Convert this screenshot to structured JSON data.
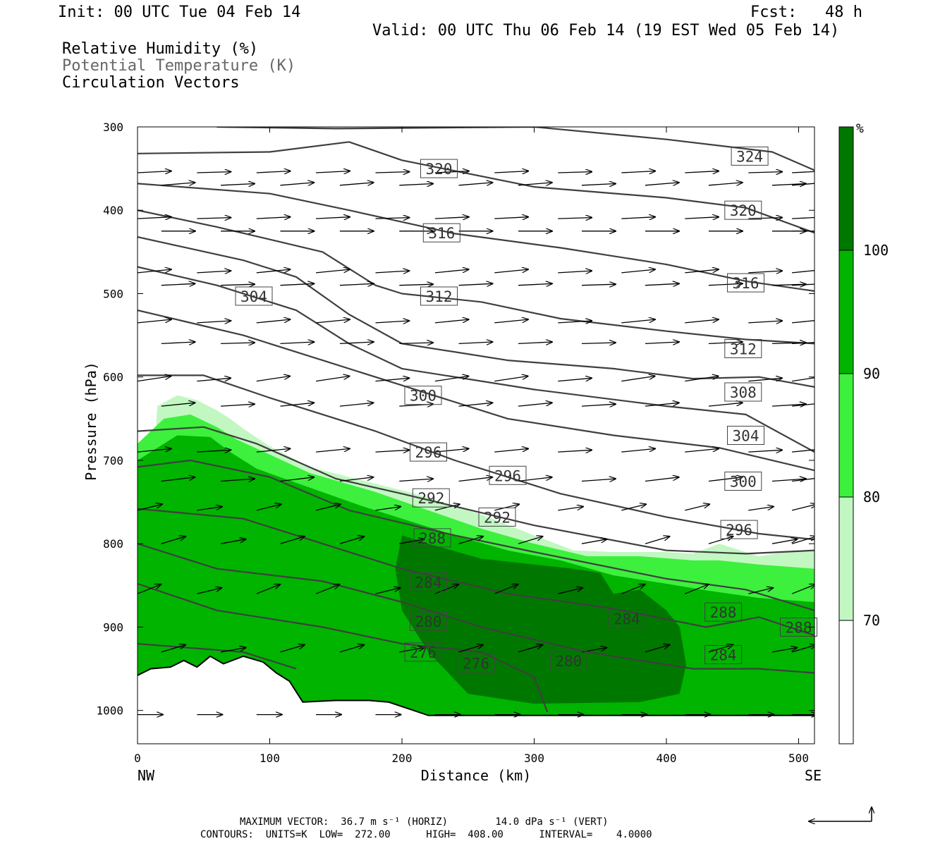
{
  "header": {
    "init": "Init: 00 UTC Tue 04 Feb 14",
    "fcst": "Fcst:   48 h",
    "valid": "Valid: 00 UTC Thu 06 Feb 14 (19 EST Wed 05 Feb 14)",
    "fields": [
      "Relative Humidity (%)",
      "Potential Temperature (K)",
      "Circulation Vectors"
    ]
  },
  "footer": {
    "max_vector": "MAXIMUM VECTOR:  36.7 m s⁻¹ (HORIZ)        14.0 dPa s⁻¹ (VERT)",
    "contours": "CONTOURS:  UNITS=K  LOW=  272.00      HIGH=  408.00      INTERVAL=    4.0000"
  },
  "colors": {
    "rh_70_80": "#c2f7c2",
    "rh_80_90": "#3df03d",
    "rh_90_100": "#00b400",
    "rh_100": "#007800",
    "contour": "#3f3f3f",
    "vector": "#000000"
  },
  "chart_data": {
    "type": "contour",
    "ylabel": "Pressure (hPa)",
    "xlabel": "Distance (km)",
    "x_ticks": [
      0,
      100,
      200,
      300,
      400,
      500
    ],
    "y_ticks": [
      300,
      400,
      500,
      600,
      700,
      800,
      900,
      1000
    ],
    "xlim": [
      0,
      512
    ],
    "ylim": [
      300,
      1040
    ],
    "y_reversed": true,
    "left_end_label": "NW",
    "right_end_label": "SE",
    "colorbar": {
      "unit": "%",
      "levels": [
        70,
        80,
        90,
        100
      ]
    },
    "theta_contours": [
      {
        "value": 324,
        "points": [
          [
            60,
            300
          ],
          [
            150,
            302
          ],
          [
            300,
            300
          ],
          [
            400,
            315
          ],
          [
            480,
            330
          ],
          [
            512,
            352
          ]
        ]
      },
      {
        "value": 320,
        "points": [
          [
            0,
            332
          ],
          [
            100,
            330
          ],
          [
            160,
            318
          ],
          [
            200,
            340
          ],
          [
            300,
            372
          ],
          [
            400,
            385
          ],
          [
            460,
            397
          ],
          [
            512,
            427
          ]
        ]
      },
      {
        "value": 316,
        "points": [
          [
            0,
            368
          ],
          [
            100,
            380
          ],
          [
            160,
            400
          ],
          [
            240,
            428
          ],
          [
            320,
            445
          ],
          [
            400,
            465
          ],
          [
            460,
            485
          ],
          [
            512,
            497
          ]
        ]
      },
      {
        "value": 312,
        "points": [
          [
            0,
            400
          ],
          [
            60,
            420
          ],
          [
            140,
            450
          ],
          [
            180,
            490
          ],
          [
            200,
            500
          ],
          [
            260,
            510
          ],
          [
            320,
            530
          ],
          [
            400,
            545
          ],
          [
            460,
            555
          ],
          [
            512,
            560
          ]
        ]
      },
      {
        "value": 308,
        "points": [
          [
            0,
            432
          ],
          [
            80,
            460
          ],
          [
            120,
            480
          ],
          [
            160,
            525
          ],
          [
            200,
            560
          ],
          [
            280,
            580
          ],
          [
            360,
            590
          ],
          [
            420,
            602
          ],
          [
            470,
            600
          ],
          [
            512,
            612
          ]
        ]
      },
      {
        "value": 304,
        "points": [
          [
            0,
            468
          ],
          [
            60,
            490
          ],
          [
            120,
            520
          ],
          [
            160,
            560
          ],
          [
            200,
            590
          ],
          [
            300,
            615
          ],
          [
            400,
            635
          ],
          [
            460,
            645
          ],
          [
            512,
            690
          ]
        ]
      },
      {
        "value": 300,
        "points": [
          [
            0,
            520
          ],
          [
            80,
            550
          ],
          [
            140,
            580
          ],
          [
            200,
            610
          ],
          [
            280,
            650
          ],
          [
            360,
            670
          ],
          [
            440,
            685
          ],
          [
            512,
            712
          ]
        ]
      },
      {
        "value": 296,
        "points": [
          [
            0,
            598
          ],
          [
            50,
            598
          ],
          [
            100,
            625
          ],
          [
            180,
            665
          ],
          [
            240,
            700
          ],
          [
            320,
            740
          ],
          [
            400,
            768
          ],
          [
            470,
            788
          ],
          [
            512,
            795
          ]
        ]
      },
      {
        "value": 292,
        "points": [
          [
            0,
            665
          ],
          [
            50,
            660
          ],
          [
            90,
            680
          ],
          [
            150,
            722
          ],
          [
            200,
            740
          ],
          [
            300,
            778
          ],
          [
            400,
            808
          ],
          [
            460,
            812
          ],
          [
            512,
            808
          ]
        ]
      },
      {
        "value": 288,
        "points": [
          [
            0,
            708
          ],
          [
            40,
            700
          ],
          [
            100,
            720
          ],
          [
            160,
            760
          ],
          [
            240,
            790
          ],
          [
            300,
            810
          ],
          [
            400,
            842
          ],
          [
            460,
            855
          ],
          [
            512,
            880
          ]
        ]
      },
      {
        "value": 284,
        "points": [
          [
            0,
            758
          ],
          [
            80,
            770
          ],
          [
            140,
            800
          ],
          [
            200,
            830
          ],
          [
            280,
            860
          ],
          [
            360,
            878
          ],
          [
            430,
            900
          ],
          [
            470,
            888
          ],
          [
            512,
            910
          ]
        ]
      },
      {
        "value": 280,
        "points": [
          [
            0,
            800
          ],
          [
            60,
            830
          ],
          [
            140,
            845
          ],
          [
            200,
            870
          ],
          [
            260,
            900
          ],
          [
            340,
            930
          ],
          [
            420,
            950
          ],
          [
            470,
            950
          ],
          [
            512,
            955
          ]
        ]
      },
      {
        "value": 276,
        "points": [
          [
            0,
            848
          ],
          [
            60,
            880
          ],
          [
            140,
            900
          ],
          [
            200,
            920
          ],
          [
            260,
            930
          ],
          [
            300,
            960
          ],
          [
            310,
            1002
          ]
        ]
      },
      {
        "value": 272,
        "points": [
          [
            0,
            920
          ],
          [
            80,
            930
          ],
          [
            120,
            950
          ]
        ]
      }
    ],
    "theta_labels": [
      {
        "text": "324",
        "x": 463,
        "p": 335
      },
      {
        "text": "320",
        "x": 228,
        "p": 350
      },
      {
        "text": "320",
        "x": 458,
        "p": 400
      },
      {
        "text": "316",
        "x": 230,
        "p": 427
      },
      {
        "text": "316",
        "x": 460,
        "p": 487
      },
      {
        "text": "304",
        "x": 88,
        "p": 503
      },
      {
        "text": "312",
        "x": 228,
        "p": 503
      },
      {
        "text": "312",
        "x": 458,
        "p": 566
      },
      {
        "text": "308",
        "x": 458,
        "p": 618
      },
      {
        "text": "300",
        "x": 216,
        "p": 622
      },
      {
        "text": "304",
        "x": 460,
        "p": 670
      },
      {
        "text": "296",
        "x": 220,
        "p": 690
      },
      {
        "text": "296",
        "x": 280,
        "p": 718
      },
      {
        "text": "300",
        "x": 458,
        "p": 725
      },
      {
        "text": "292",
        "x": 222,
        "p": 745
      },
      {
        "text": "292",
        "x": 272,
        "p": 768
      },
      {
        "text": "296",
        "x": 455,
        "p": 783
      },
      {
        "text": "288",
        "x": 223,
        "p": 793
      },
      {
        "text": "284",
        "x": 220,
        "p": 846
      },
      {
        "text": "288",
        "x": 443,
        "p": 882
      },
      {
        "text": "280",
        "x": 220,
        "p": 893
      },
      {
        "text": "284",
        "x": 370,
        "p": 890
      },
      {
        "text": "288",
        "x": 500,
        "p": 900
      },
      {
        "text": "276",
        "x": 216,
        "p": 930
      },
      {
        "text": "276",
        "x": 256,
        "p": 943
      },
      {
        "text": "280",
        "x": 326,
        "p": 940
      },
      {
        "text": "284",
        "x": 443,
        "p": 933
      }
    ],
    "terrain": [
      [
        0,
        958
      ],
      [
        10,
        950
      ],
      [
        25,
        948
      ],
      [
        35,
        940
      ],
      [
        45,
        948
      ],
      [
        55,
        935
      ],
      [
        65,
        944
      ],
      [
        80,
        935
      ],
      [
        95,
        942
      ],
      [
        105,
        955
      ],
      [
        115,
        965
      ],
      [
        125,
        990
      ],
      [
        150,
        988
      ],
      [
        175,
        988
      ],
      [
        190,
        990
      ],
      [
        205,
        998
      ],
      [
        220,
        1006
      ],
      [
        260,
        1006
      ],
      [
        300,
        1006
      ],
      [
        512,
        1006
      ]
    ],
    "rh_regions": [
      {
        "level": "70-80",
        "boundary": [
          [
            15,
            635
          ],
          [
            30,
            622
          ],
          [
            45,
            628
          ],
          [
            60,
            640
          ],
          [
            70,
            650
          ],
          [
            80,
            662
          ],
          [
            100,
            683
          ],
          [
            130,
            708
          ],
          [
            180,
            728
          ],
          [
            210,
            740
          ],
          [
            260,
            765
          ],
          [
            300,
            790
          ],
          [
            330,
            808
          ],
          [
            360,
            810
          ],
          [
            400,
            810
          ],
          [
            420,
            812
          ],
          [
            440,
            800
          ],
          [
            470,
            815
          ],
          [
            490,
            810
          ],
          [
            512,
            808
          ]
        ]
      },
      {
        "level": "80-90",
        "boundary": [
          [
            0,
            680
          ],
          [
            20,
            650
          ],
          [
            40,
            645
          ],
          [
            60,
            660
          ],
          [
            75,
            675
          ],
          [
            100,
            693
          ],
          [
            130,
            715
          ],
          [
            180,
            738
          ],
          [
            220,
            760
          ],
          [
            260,
            782
          ],
          [
            300,
            800
          ],
          [
            340,
            815
          ],
          [
            380,
            815
          ],
          [
            420,
            820
          ],
          [
            440,
            820
          ],
          [
            470,
            825
          ],
          [
            512,
            830
          ]
        ]
      },
      {
        "level": "90-100",
        "boundary": [
          [
            0,
            700
          ],
          [
            30,
            670
          ],
          [
            55,
            672
          ],
          [
            70,
            690
          ],
          [
            90,
            710
          ],
          [
            120,
            727
          ],
          [
            170,
            755
          ],
          [
            200,
            770
          ],
          [
            240,
            790
          ],
          [
            280,
            808
          ],
          [
            320,
            820
          ],
          [
            360,
            838
          ],
          [
            400,
            848
          ],
          [
            430,
            856
          ],
          [
            470,
            865
          ],
          [
            512,
            870
          ]
        ]
      },
      {
        "level": "100",
        "boundary": [
          [
            200,
            790
          ],
          [
            220,
            800
          ],
          [
            260,
            818
          ],
          [
            300,
            825
          ],
          [
            330,
            830
          ],
          [
            350,
            835
          ],
          [
            360,
            860
          ],
          [
            380,
            855
          ],
          [
            400,
            880
          ],
          [
            410,
            900
          ],
          [
            415,
            945
          ],
          [
            410,
            980
          ],
          [
            380,
            990
          ],
          [
            300,
            992
          ],
          [
            250,
            980
          ],
          [
            220,
            930
          ],
          [
            200,
            880
          ],
          [
            195,
            830
          ]
        ]
      }
    ],
    "vectors_rows": [
      {
        "p": 355,
        "u": 1,
        "w": 0.05
      },
      {
        "p": 370,
        "u": 1,
        "w": 0.08
      },
      {
        "p": 410,
        "u": 1,
        "w": 0.05
      },
      {
        "p": 425,
        "u": 1,
        "w": 0.0
      },
      {
        "p": 475,
        "u": 1,
        "w": 0.1
      },
      {
        "p": 490,
        "u": 1,
        "w": 0.05
      },
      {
        "p": 535,
        "u": 1,
        "w": 0.1
      },
      {
        "p": 560,
        "u": 1,
        "w": 0.05
      },
      {
        "p": 605,
        "u": 1,
        "w": 0.15
      },
      {
        "p": 635,
        "u": 1,
        "w": 0.1
      },
      {
        "p": 690,
        "u": 1,
        "w": 0.1
      },
      {
        "p": 725,
        "u": 1,
        "w": 0.12
      },
      {
        "p": 760,
        "u": 1,
        "w": 0.25
      },
      {
        "p": 800,
        "u": 1,
        "w": 0.3
      },
      {
        "p": 860,
        "u": 1,
        "w": 0.4
      },
      {
        "p": 930,
        "u": 1,
        "w": 0.3
      },
      {
        "p": 1005,
        "u": 1,
        "w": 0.0
      }
    ],
    "reference_vector": {
      "u": 36.7,
      "w": 14.0
    }
  }
}
